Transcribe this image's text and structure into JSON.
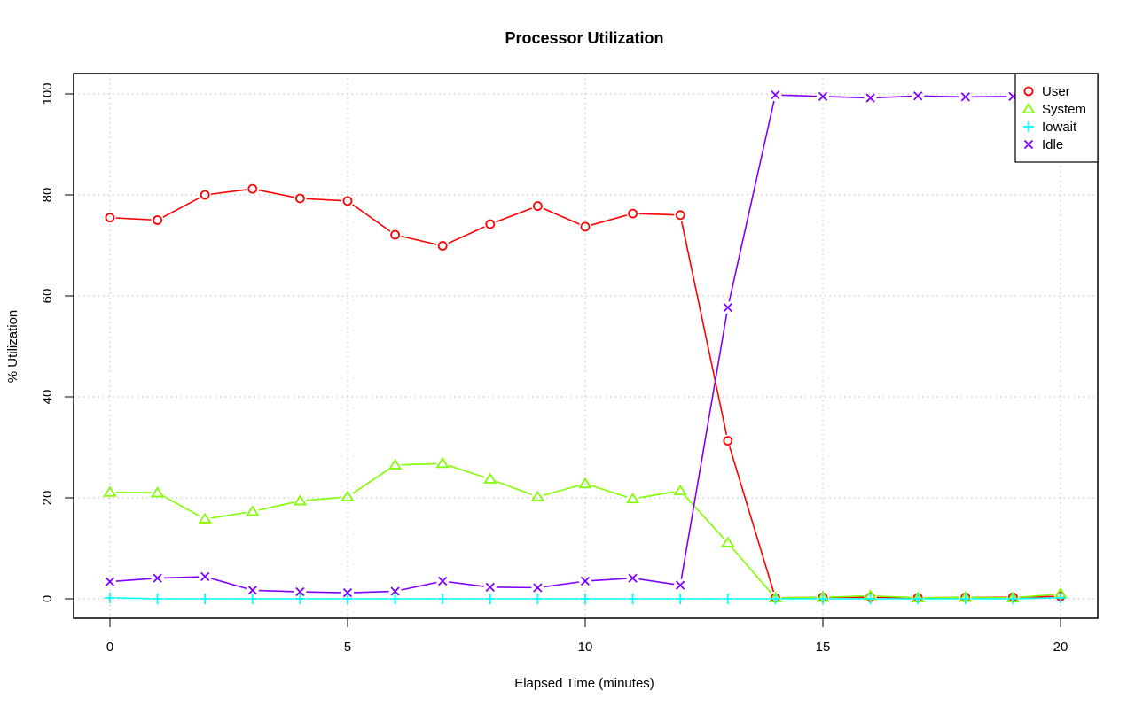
{
  "chart_data": {
    "type": "line",
    "title": "Processor Utilization",
    "xlabel": "Elapsed Time (minutes)",
    "ylabel": "% Utilization",
    "xlim": [
      0,
      20
    ],
    "ylim": [
      0,
      100
    ],
    "x_ticks": [
      0,
      5,
      10,
      15,
      20
    ],
    "y_ticks": [
      0,
      20,
      40,
      60,
      80,
      100
    ],
    "grid": true,
    "legend_position": "top-right",
    "x": [
      0,
      1,
      2,
      3,
      4,
      5,
      6,
      7,
      8,
      9,
      10,
      11,
      12,
      13,
      14,
      15,
      16,
      17,
      18,
      19,
      20
    ],
    "series": [
      {
        "name": "User",
        "color": "#ff0000",
        "marker": "circle",
        "values": [
          75.5,
          75.0,
          80.0,
          81.2,
          79.3,
          78.8,
          72.1,
          69.9,
          74.2,
          77.8,
          73.7,
          76.3,
          76.0,
          31.3,
          0.2,
          0.3,
          0.3,
          0.2,
          0.3,
          0.3,
          0.5
        ]
      },
      {
        "name": "System",
        "color": "#80ff00",
        "marker": "triangle",
        "values": [
          21.1,
          21.0,
          15.8,
          17.3,
          19.4,
          20.2,
          26.5,
          26.8,
          23.7,
          20.2,
          22.8,
          19.8,
          21.4,
          11.1,
          0.2,
          0.3,
          0.6,
          0.2,
          0.3,
          0.2,
          1.0
        ]
      },
      {
        "name": "Iowait",
        "color": "#00ffff",
        "marker": "plus",
        "values": [
          0.2,
          0.0,
          0.0,
          0.0,
          0.0,
          0.0,
          0.0,
          0.0,
          0.0,
          0.0,
          0.0,
          0.0,
          0.0,
          0.0,
          0.0,
          0.0,
          0.0,
          0.0,
          0.0,
          0.0,
          0.2
        ]
      },
      {
        "name": "Idle",
        "color": "#8000ff",
        "marker": "x",
        "values": [
          3.4,
          4.1,
          4.4,
          1.7,
          1.4,
          1.2,
          1.5,
          3.5,
          2.3,
          2.2,
          3.5,
          4.1,
          2.7,
          57.7,
          99.8,
          99.5,
          99.2,
          99.6,
          99.4,
          99.5,
          98.4
        ]
      }
    ]
  }
}
